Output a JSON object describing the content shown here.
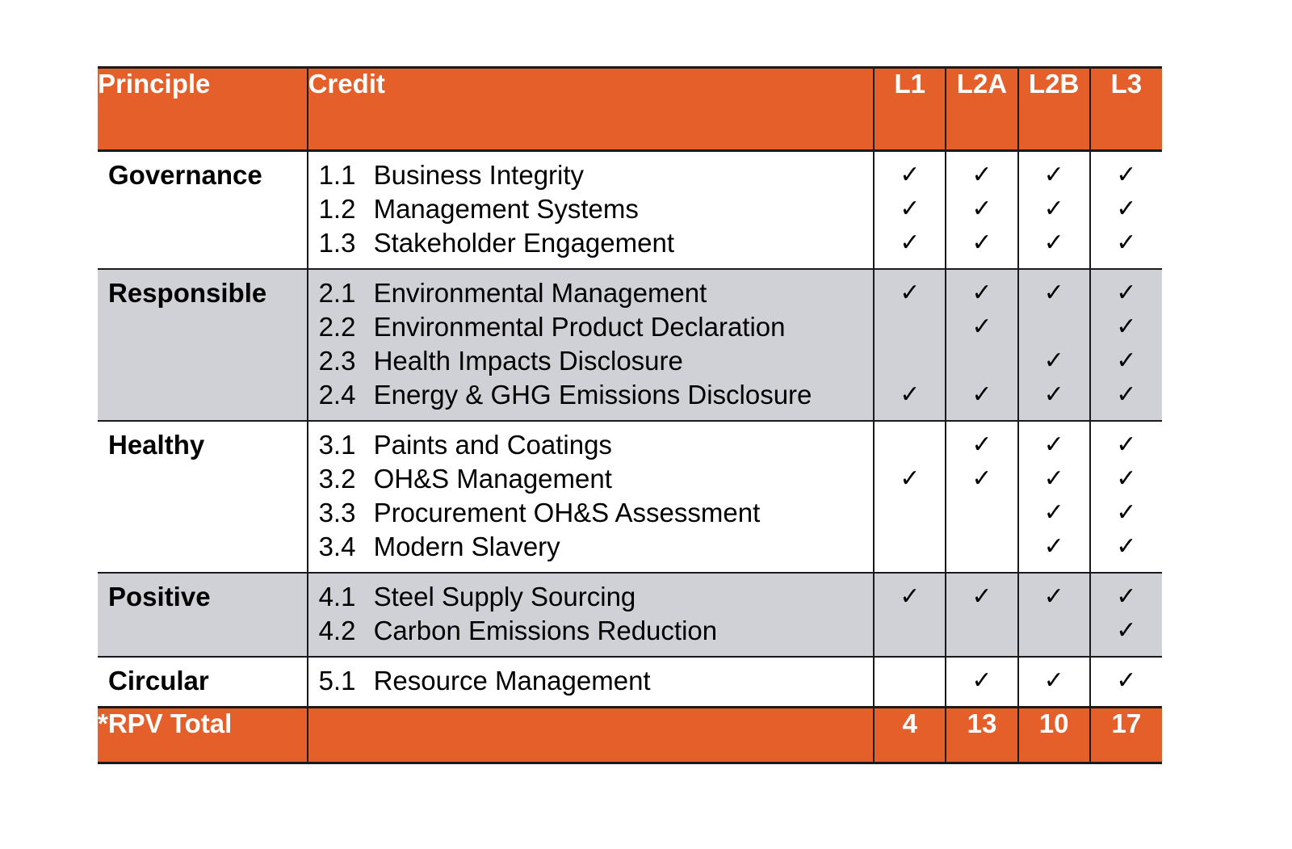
{
  "header": {
    "principle": "Principle",
    "credit": "Credit",
    "levels": [
      "L1",
      "L2A",
      "L2B",
      "L3"
    ]
  },
  "check_symbol": "✓",
  "colors": {
    "accent": "#e55f2a",
    "band": "#d0d1d6",
    "rule": "#1a1a1a"
  },
  "groups": [
    {
      "principle": "Governance",
      "shade": "white",
      "credits": [
        {
          "num": "1.1",
          "name": "Business Integrity",
          "checks": [
            true,
            true,
            true,
            true
          ]
        },
        {
          "num": "1.2",
          "name": "Management Systems",
          "checks": [
            true,
            true,
            true,
            true
          ]
        },
        {
          "num": "1.3",
          "name": "Stakeholder Engagement",
          "checks": [
            true,
            true,
            true,
            true
          ]
        }
      ]
    },
    {
      "principle": "Responsible",
      "shade": "grey",
      "credits": [
        {
          "num": "2.1",
          "name": "Environmental Management",
          "checks": [
            true,
            true,
            true,
            true
          ]
        },
        {
          "num": "2.2",
          "name": "Environmental Product Declaration",
          "checks": [
            false,
            true,
            false,
            true
          ]
        },
        {
          "num": "2.3",
          "name": "Health Impacts Disclosure",
          "checks": [
            false,
            false,
            true,
            true
          ]
        },
        {
          "num": "2.4",
          "name": "Energy & GHG Emissions Disclosure",
          "checks": [
            true,
            true,
            true,
            true
          ]
        }
      ]
    },
    {
      "principle": "Healthy",
      "shade": "white",
      "credits": [
        {
          "num": "3.1",
          "name": "Paints and Coatings",
          "checks": [
            false,
            true,
            true,
            true
          ]
        },
        {
          "num": "3.2",
          "name": "OH&S Management",
          "checks": [
            true,
            true,
            true,
            true
          ]
        },
        {
          "num": "3.3",
          "name": "Procurement OH&S Assessment",
          "checks": [
            false,
            false,
            true,
            true
          ]
        },
        {
          "num": "3.4",
          "name": "Modern Slavery",
          "checks": [
            false,
            false,
            true,
            true
          ]
        }
      ]
    },
    {
      "principle": "Positive",
      "shade": "grey",
      "credits": [
        {
          "num": "4.1",
          "name": "Steel Supply Sourcing",
          "checks": [
            true,
            true,
            true,
            true
          ]
        },
        {
          "num": "4.2",
          "name": "Carbon Emissions Reduction",
          "checks": [
            false,
            false,
            false,
            true
          ]
        }
      ]
    },
    {
      "principle": "Circular",
      "shade": "white",
      "credits": [
        {
          "num": "5.1",
          "name": "Resource Management",
          "checks": [
            false,
            true,
            true,
            true
          ]
        }
      ]
    }
  ],
  "footer": {
    "label": "*RPV Total",
    "totals": [
      "4",
      "13",
      "10",
      "17"
    ]
  }
}
